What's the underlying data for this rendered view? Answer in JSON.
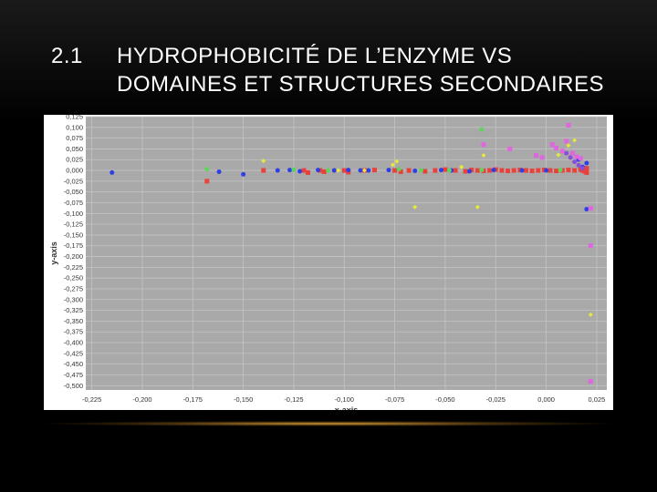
{
  "slide": {
    "number": "2.1",
    "title_line1": "HYDROPHOBICITÉ DE L’ENZYME VS",
    "title_line2": "DOMAINES ET STRUCTURES SECONDAIRES"
  },
  "colors": {
    "plot_bg": "#a9a9a9",
    "grid": "#c4c4c4",
    "red": "#e8423b",
    "blue": "#2f3fe6",
    "green": "#5fd35f",
    "yellow": "#e8e83a",
    "magenta": "#e066e0",
    "purple": "#8a4fd8"
  },
  "chart_data": {
    "type": "scatter",
    "xlabel": "x-axis",
    "ylabel": "y-axis",
    "xlim": [
      -0.228,
      0.03
    ],
    "ylim": [
      -0.51,
      0.125
    ],
    "grid": true,
    "x_ticks": [
      "-0,225",
      "-0,200",
      "-0,175",
      "-0,150",
      "-0,125",
      "-0,100",
      "-0,075",
      "-0,050",
      "-0,025",
      "0,000",
      "0,025"
    ],
    "y_ticks": [
      "0,125",
      "0,100",
      "0,075",
      "0,050",
      "0,025",
      "0,000",
      "-0,025",
      "-0,050",
      "-0,075",
      "-0,100",
      "-0,125",
      "-0,150",
      "-0,175",
      "-0,200",
      "-0,225",
      "-0,250",
      "-0,275",
      "-0,300",
      "-0,325",
      "-0,350",
      "-0,375",
      "-0,400",
      "-0,425",
      "-0,450",
      "-0,475",
      "-0,500"
    ],
    "series": [
      {
        "color": "red",
        "marker": "square",
        "points": [
          [
            -0.168,
            -0.025
          ],
          [
            -0.14,
            0.0
          ],
          [
            -0.12,
            0.0
          ],
          [
            -0.118,
            -0.005
          ],
          [
            -0.112,
            0.0
          ],
          [
            -0.11,
            -0.003
          ],
          [
            -0.1,
            0.0
          ],
          [
            -0.098,
            -0.004
          ],
          [
            -0.09,
            0.0
          ],
          [
            -0.085,
            0.001
          ],
          [
            -0.075,
            0.0
          ],
          [
            -0.072,
            -0.003
          ],
          [
            -0.068,
            0.0
          ],
          [
            -0.06,
            -0.002
          ],
          [
            -0.055,
            0.0
          ],
          [
            -0.05,
            0.002
          ],
          [
            -0.045,
            0.0
          ],
          [
            -0.04,
            -0.002
          ],
          [
            -0.037,
            0.001
          ],
          [
            -0.034,
            0.0
          ],
          [
            -0.031,
            -0.001
          ],
          [
            -0.028,
            0.0
          ],
          [
            -0.025,
            0.002
          ],
          [
            -0.022,
            0.0
          ],
          [
            -0.019,
            -0.001
          ],
          [
            -0.016,
            0.0
          ],
          [
            -0.013,
            0.001
          ],
          [
            -0.01,
            0.0
          ],
          [
            -0.007,
            -0.001
          ],
          [
            -0.004,
            0.0
          ],
          [
            -0.001,
            0.001
          ],
          [
            0.002,
            0.0
          ],
          [
            0.005,
            -0.001
          ],
          [
            0.008,
            0.0
          ],
          [
            0.011,
            0.001
          ],
          [
            0.014,
            0.0
          ],
          [
            0.017,
            0.002
          ],
          [
            0.019,
            -0.002
          ],
          [
            0.02,
            0.005
          ],
          [
            0.02,
            -0.005
          ],
          [
            0.018,
            0.0
          ]
        ]
      },
      {
        "color": "blue",
        "marker": "circle",
        "points": [
          [
            -0.215,
            -0.005
          ],
          [
            -0.162,
            -0.003
          ],
          [
            -0.15,
            -0.009
          ],
          [
            -0.133,
            0.0
          ],
          [
            -0.127,
            0.001
          ],
          [
            -0.122,
            -0.002
          ],
          [
            -0.113,
            0.001
          ],
          [
            -0.105,
            0.0
          ],
          [
            -0.098,
            0.001
          ],
          [
            -0.092,
            0.0
          ],
          [
            -0.088,
            0.0
          ],
          [
            -0.078,
            0.001
          ],
          [
            -0.065,
            -0.001
          ],
          [
            -0.052,
            0.001
          ],
          [
            -0.047,
            0.0
          ],
          [
            -0.038,
            -0.002
          ],
          [
            -0.026,
            0.001
          ],
          [
            -0.012,
            0.0
          ],
          [
            0.0,
            0.0
          ],
          [
            0.016,
            0.025
          ],
          [
            0.02,
            0.017
          ],
          [
            0.018,
            0.008
          ],
          [
            0.02,
            -0.09
          ]
        ]
      },
      {
        "color": "green",
        "marker": "circle",
        "points": [
          [
            -0.168,
            0.003
          ],
          [
            -0.125,
            0.002
          ],
          [
            -0.108,
            0.0
          ],
          [
            -0.073,
            0.003
          ],
          [
            -0.062,
            0.0
          ],
          [
            -0.048,
            0.0
          ],
          [
            -0.032,
            0.095
          ],
          [
            -0.032,
            0.001
          ],
          [
            0.007,
            0.001
          ]
        ]
      },
      {
        "color": "yellow",
        "marker": "diamond",
        "points": [
          [
            -0.14,
            0.022
          ],
          [
            -0.103,
            0.0
          ],
          [
            -0.09,
            0.0
          ],
          [
            -0.076,
            0.013
          ],
          [
            -0.074,
            0.021
          ],
          [
            -0.065,
            -0.085
          ],
          [
            -0.042,
            0.008
          ],
          [
            -0.034,
            -0.085
          ],
          [
            -0.031,
            0.035
          ],
          [
            0.006,
            0.036
          ],
          [
            0.011,
            0.058
          ],
          [
            0.014,
            0.07
          ],
          [
            0.022,
            -0.335
          ]
        ]
      },
      {
        "color": "magenta",
        "marker": "square",
        "points": [
          [
            -0.031,
            0.06
          ],
          [
            -0.018,
            0.05
          ],
          [
            -0.005,
            0.035
          ],
          [
            -0.002,
            0.03
          ],
          [
            0.003,
            0.06
          ],
          [
            0.005,
            0.052
          ],
          [
            0.008,
            0.045
          ],
          [
            0.01,
            0.068
          ],
          [
            0.011,
            0.105
          ],
          [
            0.013,
            0.04
          ],
          [
            0.015,
            0.032
          ],
          [
            0.017,
            0.028
          ],
          [
            0.022,
            -0.088
          ],
          [
            0.022,
            -0.175
          ],
          [
            0.022,
            -0.49
          ]
        ]
      },
      {
        "color": "purple",
        "marker": "circle",
        "points": [
          [
            0.01,
            0.04
          ],
          [
            0.012,
            0.03
          ],
          [
            0.014,
            0.02
          ],
          [
            0.016,
            0.012
          ],
          [
            0.018,
            0.005
          ]
        ]
      }
    ]
  }
}
